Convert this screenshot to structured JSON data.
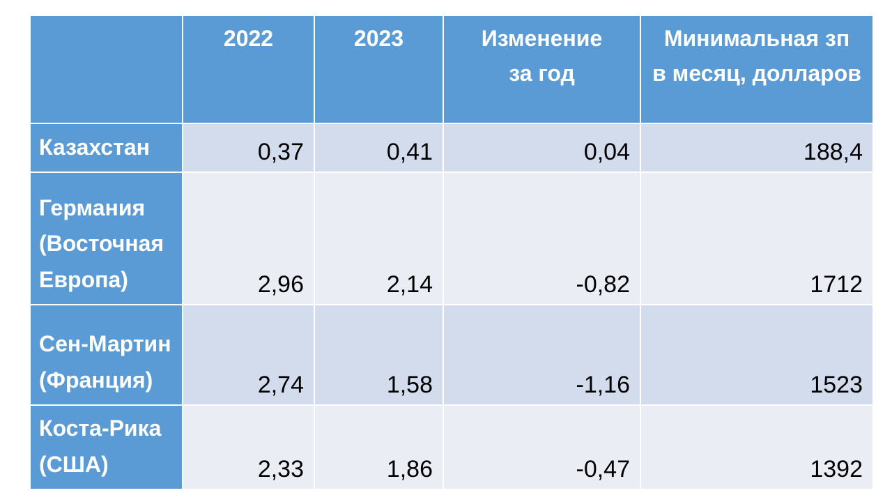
{
  "colors": {
    "header_bg": "#5B9BD5",
    "band_dark": "#D3DCEC",
    "band_light": "#EAEDF4",
    "text_on_blue": "#FFFFFF",
    "text_numbers": "#000000",
    "cell_border": "#FFFFFF"
  },
  "table": {
    "header": {
      "label": "",
      "y2022": "2022",
      "y2023": "2023",
      "change": "Изменение\nза год",
      "min_wage": "Минимальная зп\nв месяц, долларов"
    },
    "rows": [
      {
        "label": "Казахстан",
        "v2022": "0,37",
        "v2023": "0,41",
        "change": "0,04",
        "min_wage": "188,4"
      },
      {
        "label": "Германия\n(Восточная\nЕвропа)",
        "v2022": "2,96",
        "v2023": "2,14",
        "change": "-0,82",
        "min_wage": "1712"
      },
      {
        "label": "Сен-Мартин\n(Франция)",
        "v2022": "2,74",
        "v2023": "1,58",
        "change": "-1,16",
        "min_wage": "1523"
      },
      {
        "label": "Коста-Рика\n(США)",
        "v2022": "2,33",
        "v2023": "1,86",
        "change": "-0,47",
        "min_wage": "1392"
      }
    ]
  },
  "chart_data": {
    "type": "table",
    "columns": [
      "",
      "2022",
      "2023",
      "Изменение за год",
      "Минимальная зп в месяц, долларов"
    ],
    "categories": [
      "Казахстан",
      "Германия (Восточная Европа)",
      "Сен-Мартин (Франция)",
      "Коста-Рика (США)"
    ],
    "series": [
      {
        "name": "2022",
        "values": [
          0.37,
          2.96,
          2.74,
          2.33
        ]
      },
      {
        "name": "2023",
        "values": [
          0.41,
          2.14,
          1.58,
          1.86
        ]
      },
      {
        "name": "Изменение за год",
        "values": [
          0.04,
          -0.82,
          -1.16,
          -0.47
        ]
      },
      {
        "name": "Минимальная зп в месяц, долларов",
        "values": [
          188.4,
          1712,
          1523,
          1392
        ]
      }
    ],
    "title": "",
    "notes": "Decimal comma formatting as displayed on slide"
  }
}
